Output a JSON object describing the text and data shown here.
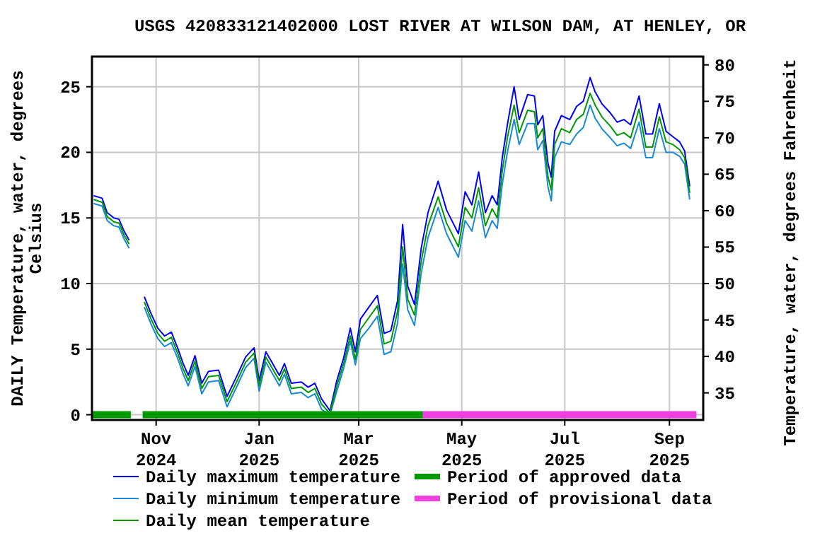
{
  "chart_data": {
    "type": "line",
    "title": "USGS 420833121402000 LOST RIVER AT WILSON DAM, AT HENLEY, OR",
    "ylabel": "DAILY Temperature, water, degrees Celsius",
    "y2label": "Temperature, water, degrees Fahrenheit",
    "x": [
      "2024-09-25",
      "2024-09-30",
      "2024-10-03",
      "2024-10-07",
      "2024-10-10",
      "2024-10-13",
      "2024-10-16",
      "2024-10-20",
      "2024-10-25",
      "2024-10-29",
      "2024-11-02",
      "2024-11-06",
      "2024-11-10",
      "2024-11-14",
      "2024-11-17",
      "2024-11-20",
      "2024-11-24",
      "2024-11-28",
      "2024-12-02",
      "2024-12-08",
      "2024-12-13",
      "2024-12-19",
      "2024-12-24",
      "2024-12-29",
      "2025-01-01",
      "2025-01-05",
      "2025-01-09",
      "2025-01-13",
      "2025-01-16",
      "2025-01-20",
      "2025-01-26",
      "2025-01-30",
      "2025-02-03",
      "2025-02-07",
      "2025-02-12",
      "2025-02-16",
      "2025-02-20",
      "2025-02-24",
      "2025-02-27",
      "2025-03-02",
      "2025-03-07",
      "2025-03-12",
      "2025-03-16",
      "2025-03-20",
      "2025-03-24",
      "2025-03-27",
      "2025-03-30",
      "2025-04-03",
      "2025-04-07",
      "2025-04-11",
      "2025-04-17",
      "2025-04-22",
      "2025-04-29",
      "2025-05-03",
      "2025-05-07",
      "2025-05-11",
      "2025-05-15",
      "2025-05-19",
      "2025-05-22",
      "2025-05-25",
      "2025-05-28",
      "2025-06-01",
      "2025-06-04",
      "2025-06-09",
      "2025-06-13",
      "2025-06-15",
      "2025-06-18",
      "2025-06-21",
      "2025-06-23",
      "2025-06-25",
      "2025-06-29",
      "2025-07-04",
      "2025-07-08",
      "2025-07-12",
      "2025-07-16",
      "2025-07-19",
      "2025-07-23",
      "2025-07-28",
      "2025-08-01",
      "2025-08-05",
      "2025-08-09",
      "2025-08-14",
      "2025-08-18",
      "2025-08-22",
      "2025-08-26",
      "2025-08-30",
      "2025-09-03",
      "2025-09-07",
      "2025-09-10",
      "2025-09-13"
    ],
    "series": [
      {
        "name": "Daily maximum temperature",
        "color": "#0000ff",
        "values": [
          16.7,
          16.5,
          15.4,
          15.0,
          14.9,
          14.0,
          13.3,
          null,
          9.0,
          7.7,
          6.6,
          6.0,
          6.3,
          5.0,
          3.9,
          3.0,
          4.5,
          2.4,
          3.3,
          3.4,
          1.4,
          3.0,
          4.4,
          5.1,
          2.6,
          4.8,
          3.9,
          3.0,
          3.9,
          2.4,
          2.5,
          2.1,
          2.4,
          1.2,
          0.3,
          2.6,
          4.3,
          6.6,
          4.8,
          7.3,
          8.2,
          9.1,
          6.2,
          6.4,
          8.7,
          14.5,
          9.8,
          8.4,
          12.7,
          15.4,
          17.8,
          15.6,
          13.8,
          17.0,
          16.0,
          18.5,
          15.4,
          16.7,
          16.0,
          19.6,
          22.1,
          25.0,
          22.5,
          24.4,
          24.3,
          22.1,
          22.8,
          19.2,
          18.1,
          21.6,
          22.8,
          22.5,
          23.5,
          23.9,
          25.7,
          24.6,
          23.7,
          23.0,
          22.3,
          22.5,
          22.1,
          24.3,
          21.4,
          21.4,
          23.7,
          21.6,
          21.2,
          20.8,
          20.1,
          17.4
        ]
      },
      {
        "name": "Daily minimum temperature",
        "color": "#1a8ad8",
        "values": [
          16.1,
          15.9,
          14.8,
          14.4,
          14.3,
          13.4,
          12.7,
          null,
          8.2,
          6.9,
          5.8,
          5.2,
          5.5,
          4.2,
          3.1,
          2.2,
          3.7,
          1.6,
          2.5,
          2.6,
          0.6,
          2.2,
          3.6,
          4.3,
          1.8,
          4.0,
          3.1,
          2.2,
          3.1,
          1.6,
          1.7,
          1.3,
          1.6,
          0.4,
          0.0,
          1.8,
          3.5,
          5.6,
          3.8,
          5.8,
          6.6,
          7.5,
          4.6,
          4.8,
          7.0,
          11.5,
          8.0,
          6.8,
          10.8,
          13.5,
          15.8,
          13.8,
          12.0,
          14.8,
          14.0,
          16.3,
          13.5,
          14.8,
          14.2,
          17.6,
          20.0,
          22.5,
          20.6,
          22.2,
          22.2,
          20.2,
          20.9,
          17.4,
          16.3,
          19.6,
          20.8,
          20.6,
          21.4,
          21.9,
          23.6,
          22.6,
          21.8,
          21.1,
          20.5,
          20.7,
          20.3,
          22.3,
          19.6,
          19.6,
          21.8,
          20.0,
          20.0,
          19.7,
          19.1,
          16.4
        ]
      },
      {
        "name": "Daily mean temperature",
        "color": "#009900",
        "values": [
          16.4,
          16.2,
          15.1,
          14.7,
          14.6,
          13.7,
          13.0,
          null,
          8.6,
          7.3,
          6.2,
          5.6,
          5.9,
          4.6,
          3.5,
          2.6,
          4.1,
          2.0,
          2.9,
          3.0,
          1.0,
          2.6,
          4.0,
          4.7,
          2.2,
          4.4,
          3.5,
          2.6,
          3.5,
          2.0,
          2.1,
          1.7,
          2.0,
          0.8,
          0.1,
          2.2,
          3.9,
          6.0,
          4.2,
          6.5,
          7.4,
          8.3,
          5.4,
          5.6,
          7.9,
          12.8,
          8.8,
          7.6,
          11.7,
          14.4,
          16.6,
          14.6,
          12.8,
          15.8,
          15.0,
          17.3,
          14.4,
          15.7,
          15.0,
          18.6,
          21.1,
          23.6,
          21.5,
          23.2,
          23.1,
          21.1,
          21.8,
          18.2,
          17.1,
          20.6,
          21.8,
          21.5,
          22.5,
          22.9,
          24.5,
          23.6,
          22.7,
          22.0,
          21.3,
          21.5,
          21.1,
          23.3,
          20.4,
          20.4,
          22.7,
          20.8,
          20.6,
          20.2,
          19.6,
          16.9
        ]
      },
      {
        "name": "Period of approved data",
        "type": "step",
        "color": "#009900",
        "x": [
          "2024-09-24",
          "2024-10-17",
          "2024-10-20",
          "2024-10-24",
          "2025-04-08"
        ],
        "values": [
          0,
          0,
          null,
          0,
          0
        ]
      },
      {
        "name": "Period of provisional data",
        "type": "step",
        "color": "#f040e0",
        "x": [
          "2025-04-08",
          "2025-09-17"
        ],
        "values": [
          0,
          0
        ]
      }
    ],
    "xlim": [
      "2024-09-24",
      "2025-09-21"
    ],
    "xticks": [
      {
        "value": "2024-11-01",
        "label": "Nov 2024"
      },
      {
        "value": "2025-01-01",
        "label": "Jan 2025"
      },
      {
        "value": "2025-03-01",
        "label": "Mar 2025"
      },
      {
        "value": "2025-05-01",
        "label": "May 2025"
      },
      {
        "value": "2025-07-01",
        "label": "Jul 2025"
      },
      {
        "value": "2025-09-01",
        "label": "Sep 2025"
      }
    ],
    "ylim": [
      -0.4,
      27.3
    ],
    "yticks": [
      0,
      5,
      10,
      15,
      20,
      25
    ],
    "y2lim": [
      31.28,
      81.14
    ],
    "y2ticks": [
      35,
      40,
      45,
      50,
      55,
      60,
      65,
      70,
      75,
      80
    ],
    "grid": true,
    "legend": "bottom"
  }
}
